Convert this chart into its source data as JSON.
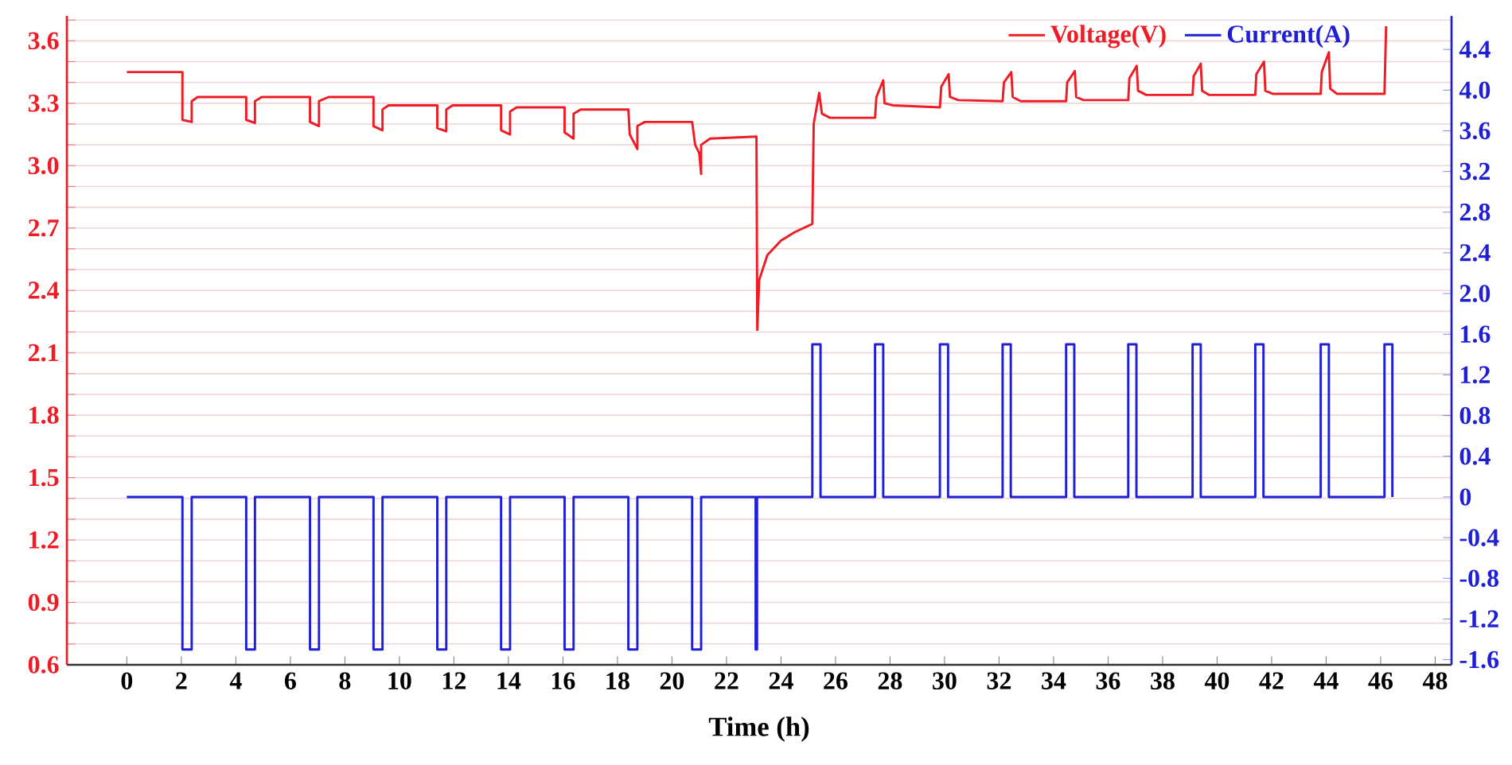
{
  "chart_data": {
    "type": "line",
    "xlabel": "Time (h)",
    "xlim": [
      -2.2,
      48.6
    ],
    "xticks": [
      0,
      2,
      4,
      6,
      8,
      10,
      12,
      14,
      16,
      18,
      20,
      22,
      24,
      26,
      28,
      30,
      32,
      34,
      36,
      38,
      40,
      42,
      44,
      46,
      48
    ],
    "ylim": [
      0.6,
      3.72
    ],
    "yticks": [
      {
        "value": 0.6,
        "label": "0.6"
      },
      {
        "value": 0.7,
        "label": null
      },
      {
        "value": 0.8,
        "label": null
      },
      {
        "value": 0.9,
        "label": "0.9"
      },
      {
        "value": 1.0,
        "label": null
      },
      {
        "value": 1.1,
        "label": null
      },
      {
        "value": 1.2,
        "label": "1.2"
      },
      {
        "value": 1.3,
        "label": null
      },
      {
        "value": 1.4,
        "label": null
      },
      {
        "value": 1.5,
        "label": "1.5"
      },
      {
        "value": 1.6,
        "label": null
      },
      {
        "value": 1.7,
        "label": null
      },
      {
        "value": 1.8,
        "label": "1.8"
      },
      {
        "value": 1.9,
        "label": null
      },
      {
        "value": 2.0,
        "label": null
      },
      {
        "value": 2.1,
        "label": "2.1"
      },
      {
        "value": 2.2,
        "label": null
      },
      {
        "value": 2.3,
        "label": null
      },
      {
        "value": 2.4,
        "label": "2.4"
      },
      {
        "value": 2.5,
        "label": null
      },
      {
        "value": 2.6,
        "label": null
      },
      {
        "value": 2.7,
        "label": "2.7"
      },
      {
        "value": 2.8,
        "label": null
      },
      {
        "value": 2.9,
        "label": null
      },
      {
        "value": 3.0,
        "label": "3.0"
      },
      {
        "value": 3.1,
        "label": null
      },
      {
        "value": 3.2,
        "label": null
      },
      {
        "value": 3.3,
        "label": "3.3"
      },
      {
        "value": 3.4,
        "label": null
      },
      {
        "value": 3.5,
        "label": null
      },
      {
        "value": 3.6,
        "label": "3.6"
      },
      {
        "value": 3.7,
        "label": null
      }
    ],
    "y2lim": [
      -1.65,
      4.73
    ],
    "y2ticks": [
      {
        "value": -1.6,
        "label": "-1.6"
      },
      {
        "value": -1.2,
        "label": "-1.2"
      },
      {
        "value": -0.8,
        "label": "-0.8"
      },
      {
        "value": -0.4,
        "label": "-0.4"
      },
      {
        "value": 0,
        "label": "0"
      },
      {
        "value": 0.4,
        "label": "0.4"
      },
      {
        "value": 0.8,
        "label": "0.8"
      },
      {
        "value": 1.2,
        "label": "1.2"
      },
      {
        "value": 1.6,
        "label": "1.6"
      },
      {
        "value": 2.0,
        "label": "2.0"
      },
      {
        "value": 2.4,
        "label": "2.4"
      },
      {
        "value": 2.8,
        "label": "2.8"
      },
      {
        "value": 3.2,
        "label": "3.2"
      },
      {
        "value": 3.6,
        "label": "3.6"
      },
      {
        "value": 4.0,
        "label": "4.0"
      },
      {
        "value": 4.4,
        "label": "4.4"
      }
    ],
    "grid": "y",
    "legend": "top right",
    "series": [
      {
        "name": "Voltage(V)",
        "color": "#ee1c25",
        "x": [
          0,
          2.04,
          2.04,
          2.38,
          2.38,
          2.6,
          4.38,
          4.38,
          4.7,
          4.7,
          4.95,
          6.72,
          6.72,
          7.05,
          7.05,
          7.4,
          9.05,
          9.05,
          9.38,
          9.38,
          9.6,
          11.39,
          11.39,
          11.72,
          11.72,
          11.95,
          13.73,
          13.73,
          14.06,
          14.06,
          14.3,
          16.06,
          16.06,
          16.39,
          16.39,
          16.65,
          18.4,
          18.45,
          18.73,
          18.73,
          19.0,
          20.74,
          20.85,
          21.0,
          21.07,
          21.07,
          21.4,
          23.1,
          23.13,
          23.2,
          23.5,
          24.0,
          24.5,
          25.15,
          25.2,
          25.4,
          25.5,
          25.8,
          27.45,
          27.5,
          27.75,
          27.8,
          28.1,
          29.83,
          29.88,
          30.15,
          30.2,
          30.5,
          32.13,
          32.18,
          32.45,
          32.5,
          32.8,
          34.46,
          34.5,
          34.78,
          34.83,
          35.1,
          36.74,
          36.78,
          37.05,
          37.1,
          37.4,
          39.1,
          39.14,
          39.4,
          39.45,
          39.7,
          41.4,
          41.44,
          41.72,
          41.77,
          42.05,
          43.8,
          43.84,
          44.1,
          44.15,
          44.4,
          46.14,
          46.2
        ],
        "values": [
          3.45,
          3.45,
          3.22,
          3.21,
          3.31,
          3.33,
          3.33,
          3.22,
          3.205,
          3.31,
          3.33,
          3.33,
          3.21,
          3.19,
          3.31,
          3.33,
          3.33,
          3.19,
          3.17,
          3.27,
          3.29,
          3.29,
          3.18,
          3.165,
          3.27,
          3.29,
          3.29,
          3.17,
          3.15,
          3.26,
          3.28,
          3.28,
          3.16,
          3.13,
          3.25,
          3.27,
          3.27,
          3.15,
          3.08,
          3.19,
          3.21,
          3.21,
          3.1,
          3.06,
          2.96,
          3.1,
          3.13,
          3.14,
          2.21,
          2.45,
          2.57,
          2.64,
          2.68,
          2.72,
          3.2,
          3.35,
          3.25,
          3.23,
          3.23,
          3.33,
          3.41,
          3.3,
          3.29,
          3.28,
          3.38,
          3.44,
          3.33,
          3.315,
          3.31,
          3.4,
          3.45,
          3.33,
          3.31,
          3.31,
          3.4,
          3.455,
          3.33,
          3.315,
          3.315,
          3.42,
          3.48,
          3.36,
          3.34,
          3.34,
          3.43,
          3.49,
          3.36,
          3.34,
          3.34,
          3.44,
          3.5,
          3.36,
          3.345,
          3.345,
          3.45,
          3.545,
          3.37,
          3.345,
          3.345,
          3.67
        ]
      },
      {
        "name": "Current(A)",
        "color": "#1f1fd6",
        "axis": "y2",
        "x": [
          0,
          2.04,
          2.04,
          2.38,
          2.38,
          4.38,
          4.38,
          4.7,
          4.7,
          6.72,
          6.72,
          7.05,
          7.05,
          9.05,
          9.05,
          9.38,
          9.38,
          11.39,
          11.39,
          11.72,
          11.72,
          13.73,
          13.73,
          14.06,
          14.06,
          16.06,
          16.06,
          16.39,
          16.39,
          18.4,
          18.4,
          18.73,
          18.73,
          20.74,
          20.74,
          21.07,
          21.07,
          23.07,
          23.07,
          23.12,
          23.12,
          25.15,
          25.15,
          25.45,
          25.45,
          27.45,
          27.45,
          27.75,
          27.75,
          29.83,
          29.83,
          30.13,
          30.13,
          32.13,
          32.13,
          32.43,
          32.43,
          34.46,
          34.46,
          34.76,
          34.76,
          36.74,
          36.74,
          37.04,
          37.04,
          39.1,
          39.1,
          39.4,
          39.4,
          41.4,
          41.4,
          41.7,
          41.7,
          43.8,
          43.8,
          44.1,
          44.1,
          46.14,
          46.14,
          46.43,
          46.43
        ],
        "values": [
          0,
          0,
          -1.5,
          -1.5,
          0,
          0,
          -1.5,
          -1.5,
          0,
          0,
          -1.5,
          -1.5,
          0,
          0,
          -1.5,
          -1.5,
          0,
          0,
          -1.5,
          -1.5,
          0,
          0,
          -1.5,
          -1.5,
          0,
          0,
          -1.5,
          -1.5,
          0,
          0,
          -1.5,
          -1.5,
          0,
          0,
          -1.5,
          -1.5,
          0,
          0,
          -1.5,
          -1.5,
          0,
          0,
          1.5,
          1.5,
          0,
          0,
          1.5,
          1.5,
          0,
          0,
          1.5,
          1.5,
          0,
          0,
          1.5,
          1.5,
          0,
          0,
          1.5,
          1.5,
          0,
          0,
          1.5,
          1.5,
          0,
          0,
          1.5,
          1.5,
          0,
          0,
          1.5,
          1.5,
          0,
          0,
          1.5,
          1.5,
          0,
          0,
          1.5,
          1.5,
          0
        ]
      }
    ]
  }
}
